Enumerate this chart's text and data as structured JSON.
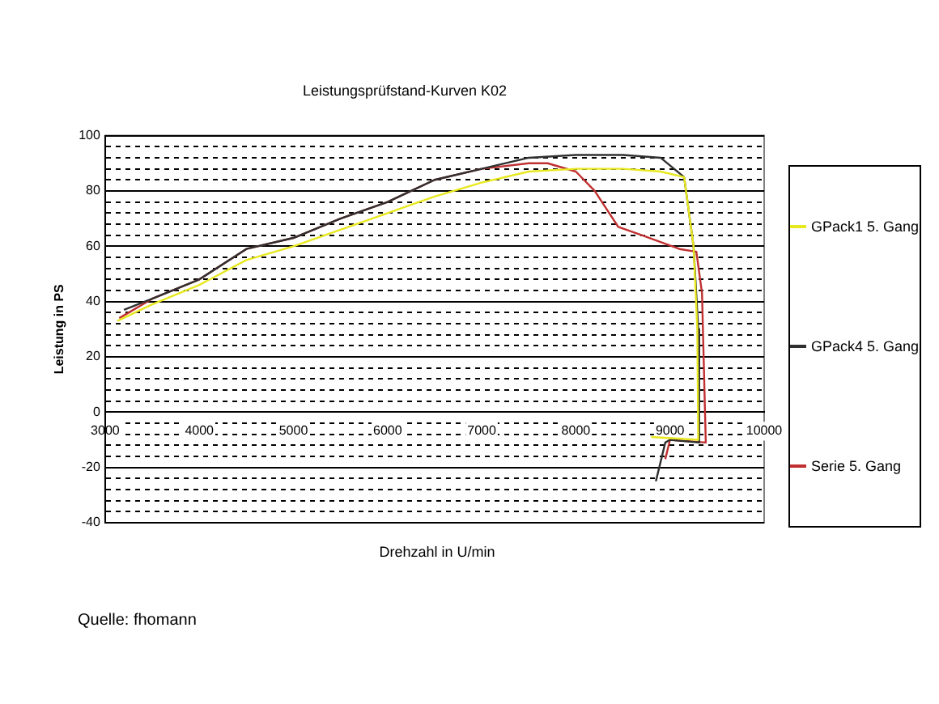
{
  "chart_data": {
    "type": "line",
    "title": "Leistungsprüfstand-Kurven K02",
    "xlabel": "Drehzahl in U/min",
    "ylabel": "Leistung in PS",
    "annotations": [
      "Quelle:  fhomann"
    ],
    "xlim": [
      3000,
      10000
    ],
    "xticks": [
      3000,
      4000,
      5000,
      6000,
      7000,
      8000,
      9000,
      10000
    ],
    "ylim": [
      -40,
      100
    ],
    "yticks": [
      -40,
      -20,
      0,
      20,
      40,
      60,
      80,
      100
    ],
    "grid": "y",
    "legend": "right",
    "marker": "none",
    "line_style": "solid",
    "series": [
      {
        "name": "GPack1  5. Gang",
        "color": "#e8e820",
        "x": [
          3130,
          3500,
          4000,
          4500,
          5000,
          5500,
          6000,
          6500,
          7000,
          7500,
          8000,
          8500,
          8900,
          9150,
          9250,
          9290,
          9300,
          8800
        ],
        "values": [
          33,
          39,
          46,
          55,
          60,
          66,
          72,
          78,
          83,
          87,
          88,
          88,
          87,
          85,
          60,
          30,
          -10,
          -9
        ]
      },
      {
        "name": "GPack4  5. Gang",
        "color": "#303030",
        "x": [
          3200,
          3500,
          4000,
          4500,
          5000,
          5500,
          6000,
          6500,
          7000,
          7500,
          8000,
          8500,
          8900,
          9150,
          9250,
          9300,
          9310,
          9000,
          8950,
          8850
        ],
        "values": [
          37,
          41,
          48,
          59,
          63,
          70,
          76,
          84,
          88,
          92,
          93,
          93,
          92,
          85,
          60,
          30,
          -11,
          -10,
          -11,
          -25
        ]
      },
      {
        "name": "Serie 5. Gang",
        "color": "#c03030",
        "x": [
          3150,
          3500,
          4000,
          4500,
          5000,
          5500,
          6000,
          6500,
          7000,
          7500,
          7700,
          8000,
          8200,
          8450,
          8700,
          9100,
          9280,
          9340,
          9380,
          9000,
          8950
        ],
        "values": [
          34,
          41,
          48,
          59,
          63,
          70,
          76,
          84,
          88,
          90,
          90,
          87,
          80,
          67,
          64,
          59,
          58,
          43,
          -11,
          -10,
          -17
        ]
      }
    ]
  }
}
